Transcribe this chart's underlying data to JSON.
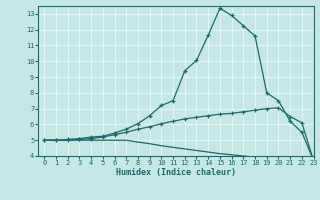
{
  "xlabel": "Humidex (Indice chaleur)",
  "xlim": [
    -0.5,
    23
  ],
  "ylim": [
    4,
    13.5
  ],
  "xticks": [
    0,
    1,
    2,
    3,
    4,
    5,
    6,
    7,
    8,
    9,
    10,
    11,
    12,
    13,
    14,
    15,
    16,
    17,
    18,
    19,
    20,
    21,
    22,
    23
  ],
  "yticks": [
    4,
    5,
    6,
    7,
    8,
    9,
    10,
    11,
    12,
    13
  ],
  "background_color": "#c5e8e5",
  "grid_color": "#e8f8f8",
  "line_color": "#1a6b6b",
  "curve1_x": [
    0,
    1,
    2,
    3,
    4,
    5,
    6,
    7,
    8,
    9,
    10,
    11,
    12,
    13,
    14,
    15,
    16,
    17,
    18,
    19,
    20,
    21,
    22,
    23
  ],
  "curve1_y": [
    5.0,
    5.0,
    5.05,
    5.1,
    5.2,
    5.25,
    5.45,
    5.7,
    6.05,
    6.55,
    7.2,
    7.5,
    9.4,
    10.05,
    11.65,
    13.35,
    12.9,
    12.25,
    11.6,
    8.0,
    7.5,
    6.2,
    5.5,
    3.7
  ],
  "curve2_x": [
    0,
    1,
    2,
    3,
    4,
    5,
    6,
    7,
    8,
    9,
    10,
    11,
    12,
    13,
    14,
    15,
    16,
    17,
    18,
    19,
    20,
    21,
    22,
    23
  ],
  "curve2_y": [
    5.0,
    5.0,
    5.0,
    5.05,
    5.1,
    5.2,
    5.35,
    5.5,
    5.7,
    5.85,
    6.05,
    6.2,
    6.35,
    6.45,
    6.55,
    6.65,
    6.7,
    6.8,
    6.9,
    7.0,
    7.05,
    6.5,
    6.1,
    3.7
  ],
  "curve3_x": [
    0,
    1,
    2,
    3,
    4,
    5,
    6,
    7,
    8,
    9,
    10,
    11,
    12,
    13,
    14,
    15,
    16,
    17,
    18,
    19,
    20,
    21,
    22,
    23
  ],
  "curve3_y": [
    5.0,
    5.0,
    5.0,
    5.0,
    5.0,
    5.0,
    5.0,
    5.0,
    4.88,
    4.78,
    4.65,
    4.55,
    4.45,
    4.35,
    4.25,
    4.15,
    4.08,
    4.0,
    3.92,
    3.85,
    3.78,
    3.73,
    3.68,
    3.62
  ]
}
